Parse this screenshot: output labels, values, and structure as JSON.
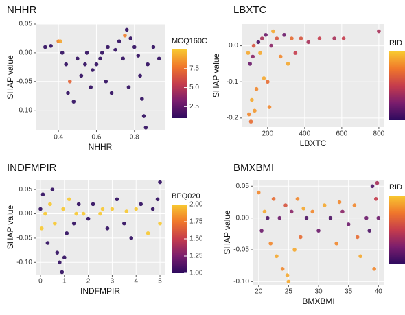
{
  "chart_data": [
    {
      "type": "scatter",
      "title": "NHHR",
      "x_label": "NHHR",
      "y_label": "SHAP value",
      "color_label": "MCQ160C",
      "colormap": [
        "#2d0a5e",
        "#7a1d6d",
        "#c53c4c",
        "#f0772b",
        "#f8c931"
      ],
      "xlim": [
        0.28,
        0.96
      ],
      "ylim": [
        -0.135,
        0.05
      ],
      "xticks": [
        0.4,
        0.6,
        0.8
      ],
      "yticks": [
        0.05,
        {
          "value": 0,
          "label": "0.00"
        },
        -0.05,
        {
          "value": -0.1,
          "label": "-0.10"
        }
      ],
      "clim": [
        1,
        10
      ],
      "cticks": [
        2.5,
        {
          "value": 5,
          "label": "5.0"
        },
        7.5
      ],
      "grid": true,
      "x": [
        0.33,
        0.36,
        0.4,
        0.42,
        0.44,
        0.45,
        0.46,
        0.48,
        0.5,
        0.52,
        0.54,
        0.55,
        0.57,
        0.58,
        0.6,
        0.62,
        0.63,
        0.65,
        0.66,
        0.68,
        0.7,
        0.72,
        0.74,
        0.75,
        0.76,
        0.77,
        0.78,
        0.8,
        0.82,
        0.83,
        0.84,
        0.85,
        0.86,
        0.87,
        0.9,
        0.93,
        0.41
      ],
      "y": [
        0.01,
        0.012,
        0.02,
        0.0,
        -0.02,
        -0.07,
        -0.05,
        -0.085,
        -0.01,
        -0.04,
        -0.02,
        0.0,
        -0.06,
        -0.03,
        -0.02,
        -0.01,
        0.0,
        -0.05,
        0.01,
        -0.07,
        0.005,
        0.02,
        -0.01,
        0.03,
        0.04,
        -0.06,
        0.025,
        0.01,
        -0.005,
        -0.04,
        -0.08,
        -0.11,
        -0.13,
        -0.02,
        0.01,
        -0.01,
        0.02
      ],
      "color_values": [
        1,
        1,
        8,
        1,
        1,
        1,
        7,
        1,
        1,
        1,
        1,
        1,
        1,
        1,
        1,
        1,
        1,
        1,
        1,
        1,
        1,
        1,
        1,
        8,
        1,
        1,
        1,
        1,
        1,
        1,
        1,
        1,
        1,
        1,
        1,
        1,
        9
      ]
    },
    {
      "type": "scatter",
      "title": "LBXTC",
      "x_label": "LBXTC",
      "y_label": "SHAP value",
      "color_label": "RID",
      "colormap": [
        "#2d0a5e",
        "#7a1d6d",
        "#c53c4c",
        "#f0772b",
        "#f8c931"
      ],
      "xlim": [
        60,
        830
      ],
      "ylim": [
        -0.225,
        0.06
      ],
      "xticks": [
        200,
        400,
        600,
        800
      ],
      "yticks": [
        {
          "value": 0,
          "label": "0.0"
        },
        -0.1,
        -0.2
      ],
      "clim": [
        0,
        1
      ],
      "grid": true,
      "x": [
        95,
        100,
        105,
        110,
        115,
        120,
        125,
        130,
        140,
        150,
        160,
        170,
        180,
        190,
        200,
        210,
        220,
        230,
        250,
        270,
        290,
        310,
        330,
        350,
        380,
        420,
        480,
        560,
        610,
        800
      ],
      "y": [
        -0.02,
        -0.19,
        -0.05,
        -0.21,
        -0.15,
        -0.03,
        0.0,
        -0.18,
        -0.12,
        0.01,
        -0.02,
        0.02,
        -0.09,
        0.03,
        -0.1,
        -0.17,
        0.0,
        0.04,
        0.02,
        -0.03,
        0.03,
        -0.05,
        0.02,
        -0.02,
        0.02,
        0.01,
        0.02,
        0.02,
        0.02,
        0.04
      ],
      "color_values": [
        0.9,
        0.8,
        0.2,
        0.7,
        0.9,
        0.3,
        0.6,
        0.85,
        0.8,
        0.1,
        0.9,
        0.4,
        0.9,
        0.2,
        0.7,
        0.8,
        0.3,
        0.9,
        0.6,
        0.8,
        0.2,
        0.9,
        0.7,
        0.5,
        0.6,
        0.4,
        0.5,
        0.4,
        0.5,
        0.4
      ]
    },
    {
      "type": "scatter",
      "title": "INDFMPIR",
      "x_label": "INDFMPIR",
      "y_label": "SHAP value",
      "color_label": "BPQ020",
      "colormap": [
        "#2d0a5e",
        "#7a1d6d",
        "#c53c4c",
        "#f0772b",
        "#f8c931"
      ],
      "xlim": [
        -0.2,
        5.2
      ],
      "ylim": [
        -0.125,
        0.07
      ],
      "xticks": [
        0,
        1,
        2,
        3,
        4,
        5
      ],
      "yticks": [
        0.05,
        {
          "value": 0,
          "label": "0.00"
        },
        -0.05,
        {
          "value": -0.1,
          "label": "-0.10"
        }
      ],
      "clim": [
        1,
        2
      ],
      "cticks": [
        {
          "value": 1,
          "label": "1.00"
        },
        1.25,
        {
          "value": 1.5,
          "label": "1.50"
        },
        1.75,
        {
          "value": 2,
          "label": "2.00"
        }
      ],
      "grid": true,
      "x": [
        0.0,
        0.05,
        0.1,
        0.2,
        0.3,
        0.4,
        0.5,
        0.6,
        0.7,
        0.8,
        0.9,
        0.95,
        1.0,
        1.1,
        1.2,
        1.4,
        1.6,
        1.8,
        2.0,
        2.2,
        2.5,
        2.8,
        3.0,
        3.2,
        3.5,
        3.8,
        4.0,
        4.2,
        4.5,
        4.7,
        4.9,
        5.0,
        5.0,
        1.5,
        2.6,
        3.6
      ],
      "y": [
        0.01,
        -0.03,
        0.04,
        0.0,
        -0.06,
        0.02,
        0.05,
        -0.02,
        -0.08,
        -0.1,
        -0.12,
        0.01,
        -0.09,
        -0.04,
        0.03,
        -0.02,
        0.02,
        0.0,
        -0.01,
        0.02,
        0.0,
        -0.03,
        0.01,
        0.03,
        -0.02,
        -0.05,
        0.01,
        0.02,
        -0.04,
        0.01,
        0.03,
        0.065,
        -0.02,
        0.0,
        0.01,
        0.005
      ],
      "color_values": [
        1,
        2,
        1,
        2,
        1,
        2,
        1,
        2,
        1,
        1,
        1,
        2,
        1,
        1,
        2,
        1,
        1,
        2,
        1,
        1,
        2,
        1,
        2,
        1,
        1,
        1,
        2,
        1,
        2,
        1,
        1,
        1,
        2,
        2,
        2,
        2
      ]
    },
    {
      "type": "scatter",
      "title": "BMXBMI",
      "x_label": "BMXBMI",
      "y_label": "SHAP value",
      "color_label": "RID",
      "colormap": [
        "#2d0a5e",
        "#7a1d6d",
        "#c53c4c",
        "#f0772b",
        "#f8c931"
      ],
      "xlim": [
        19,
        41
      ],
      "ylim": [
        -0.105,
        0.06
      ],
      "xticks": [
        20,
        25,
        30,
        35,
        40
      ],
      "yticks": [
        0.05,
        {
          "value": 0,
          "label": "0.00"
        },
        -0.05,
        {
          "value": -0.1,
          "label": "-0.10"
        }
      ],
      "clim": [
        0,
        1
      ],
      "grid": true,
      "x": [
        20,
        20.5,
        21,
        21.5,
        22,
        22.5,
        23,
        23.5,
        24,
        24.5,
        25,
        25.5,
        26,
        26.5,
        27,
        28,
        29,
        30,
        31,
        32,
        33,
        34,
        35,
        36,
        37,
        38,
        38.5,
        39,
        39.3,
        39.6,
        39.8,
        40,
        24.8,
        27.5,
        33.5,
        36.5
      ],
      "y": [
        0.04,
        -0.02,
        0.01,
        0.0,
        -0.04,
        0.03,
        -0.06,
        0.0,
        -0.08,
        0.02,
        -0.1,
        0.01,
        -0.05,
        0.03,
        -0.03,
        0.0,
        0.01,
        -0.02,
        0.02,
        0.0,
        -0.04,
        0.01,
        -0.01,
        0.02,
        -0.06,
        0.0,
        -0.02,
        0.05,
        -0.08,
        0.03,
        0.055,
        0.0,
        -0.09,
        0.015,
        0.025,
        -0.03
      ],
      "color_values": [
        0.8,
        0.2,
        0.9,
        0.1,
        0.8,
        0.7,
        0.9,
        0.2,
        0.8,
        0.6,
        0.9,
        0.3,
        0.9,
        0.8,
        0.7,
        0.1,
        0.8,
        0.2,
        0.9,
        0.1,
        0.8,
        0.3,
        0.2,
        0.8,
        0.9,
        0.2,
        0.1,
        0.1,
        0.8,
        0.5,
        0.4,
        0.2,
        0.9,
        0.9,
        0.8,
        0.7
      ]
    }
  ]
}
